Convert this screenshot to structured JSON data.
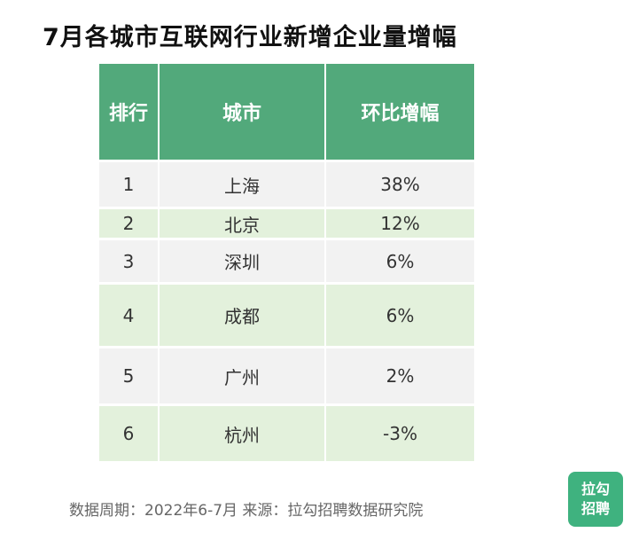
{
  "header": {
    "title": "7月各城市互联网行业新增企业量增幅"
  },
  "table": {
    "columns": [
      "排行",
      "城市",
      "环比增幅"
    ],
    "rows": [
      [
        "1",
        "上海",
        "38%"
      ],
      [
        "2",
        "北京",
        "12%"
      ],
      [
        "3",
        "深圳",
        "6%"
      ],
      [
        "4",
        "成都",
        "6%"
      ],
      [
        "5",
        "广州",
        "2%"
      ],
      [
        "6",
        "杭州",
        "-3%"
      ]
    ]
  },
  "footer": {
    "note": "数据周期：2022年6-7月  来源：拉勾招聘数据研究院"
  },
  "logo": {
    "lines": [
      "拉勾",
      "招聘"
    ]
  }
}
